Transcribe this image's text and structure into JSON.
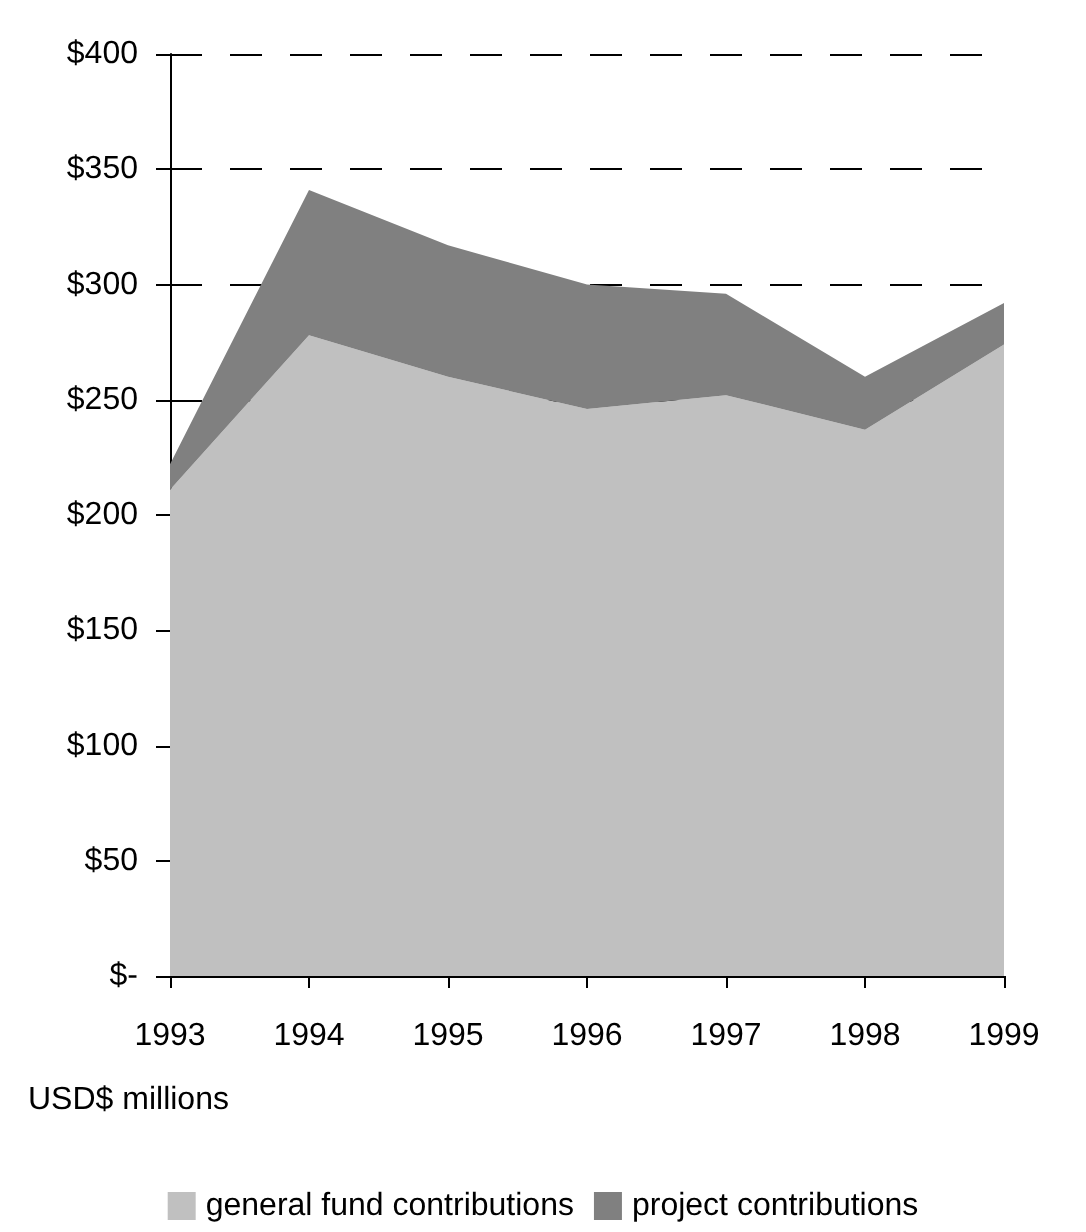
{
  "chart_data": {
    "type": "area",
    "stacked": true,
    "categories": [
      "1993",
      "1994",
      "1995",
      "1996",
      "1997",
      "1998",
      "1999"
    ],
    "series": [
      {
        "name": "general fund contributions",
        "color": "#c0c0c0",
        "values": [
          211,
          278,
          260,
          246,
          252,
          237,
          274
        ]
      },
      {
        "name": "project contributions",
        "color": "#808080",
        "values": [
          11,
          63,
          57,
          54,
          44,
          23,
          18
        ]
      }
    ],
    "ylim": [
      0,
      400
    ],
    "yticks": [
      {
        "value": 0,
        "label": "$-"
      },
      {
        "value": 50,
        "label": "$50"
      },
      {
        "value": 100,
        "label": "$100"
      },
      {
        "value": 150,
        "label": "$150"
      },
      {
        "value": 200,
        "label": "$200"
      },
      {
        "value": 250,
        "label": "$250"
      },
      {
        "value": 300,
        "label": "$300"
      },
      {
        "value": 350,
        "label": "$350"
      },
      {
        "value": 400,
        "label": "$400"
      }
    ],
    "grid": "y",
    "legend": "bottom",
    "annotations": [
      "USD$ millions"
    ]
  }
}
